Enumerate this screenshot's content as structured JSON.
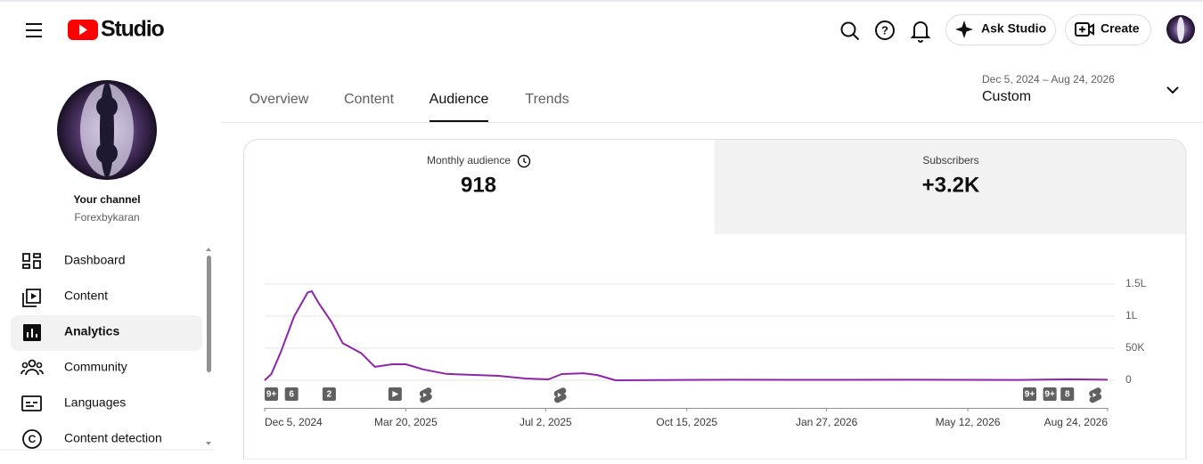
{
  "header": {
    "logo": "Studio",
    "ask": "Ask Studio",
    "create": "Create"
  },
  "sidebar": {
    "channel_title": "Your channel",
    "channel_name": "Forexbykaran",
    "nav": [
      "Dashboard",
      "Content",
      "Analytics",
      "Community",
      "Languages",
      "Content detection"
    ]
  },
  "tabs": [
    "Overview",
    "Content",
    "Audience",
    "Trends"
  ],
  "date_range": {
    "range": "Dec 5, 2024 – Aug 24, 2026",
    "preset": "Custom"
  },
  "cards": [
    {
      "label": "Monthly audience",
      "value": "918"
    },
    {
      "label": "Subscribers",
      "value": "+3.2K"
    }
  ],
  "chart_data": {
    "type": "line",
    "color": "#8e24aa",
    "x": [
      "2024-12-05",
      "2024-12-10",
      "2024-12-17",
      "2024-12-27",
      "2025-01-06",
      "2025-01-09",
      "2025-01-14",
      "2025-01-24",
      "2025-02-01",
      "2025-02-15",
      "2025-02-25",
      "2025-03-10",
      "2025-03-20",
      "2025-04-02",
      "2025-04-19",
      "2025-05-28",
      "2025-06-17",
      "2025-07-04",
      "2025-07-14",
      "2025-07-30",
      "2025-08-09",
      "2025-08-23",
      "2025-11-20",
      "2026-01-29",
      "2026-03-30",
      "2026-06-18",
      "2026-07-28",
      "2026-08-24"
    ],
    "values": [
      0,
      9700,
      44000,
      100000,
      137000,
      139000,
      121000,
      90000,
      58000,
      42000,
      21000,
      25000,
      25000,
      17000,
      10000,
      7000,
      2800,
      1400,
      9700,
      11000,
      8300,
      0,
      800,
      700,
      900,
      600,
      1500,
      800
    ],
    "xlim": [
      "2024-12-05",
      "2026-08-24"
    ],
    "xticks": [
      {
        "value": "2024-12-05",
        "label": "Dec 5, 2024"
      },
      {
        "value": "2025-03-20",
        "label": "Mar 20, 2025"
      },
      {
        "value": "2025-07-02",
        "label": "Jul 2, 2025"
      },
      {
        "value": "2025-10-15",
        "label": "Oct 15, 2025"
      },
      {
        "value": "2026-01-27",
        "label": "Jan 27, 2026"
      },
      {
        "value": "2026-05-12",
        "label": "May 12, 2026"
      },
      {
        "value": "2026-08-24",
        "label": "Aug 24, 2026"
      }
    ],
    "ylim": [
      0,
      150000
    ],
    "yticks": [
      0,
      {
        "value": 50000,
        "label": "50K"
      },
      {
        "value": 100000,
        "label": "1L"
      },
      {
        "value": 150000,
        "label": "1.5L"
      }
    ],
    "grid": true,
    "markers": [
      {
        "x": "2024-12-10",
        "label": "9+"
      },
      {
        "x": "2024-12-25",
        "label": "6"
      },
      {
        "x": "2025-01-22",
        "label": "2"
      },
      {
        "x": "2025-03-12",
        "kind": "video"
      },
      {
        "x": "2025-04-03",
        "kind": "shorts"
      },
      {
        "x": "2025-07-12",
        "kind": "shorts"
      },
      {
        "x": "2026-06-27",
        "label": "9+"
      },
      {
        "x": "2026-07-12",
        "label": "9+"
      },
      {
        "x": "2026-07-25",
        "label": "8"
      },
      {
        "x": "2026-08-14",
        "kind": "shorts"
      }
    ]
  }
}
